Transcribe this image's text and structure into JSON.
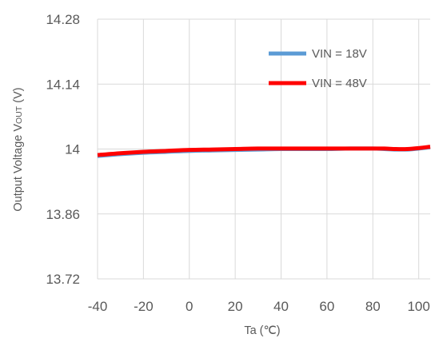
{
  "chart_data": {
    "type": "line",
    "title": "",
    "xlabel": "Ta (℃)",
    "ylabel": "Output Voltage Vout (V)",
    "ylabel_parts": {
      "main": "Output Voltage V",
      "subscript": "OUT",
      "unit": " (V)"
    },
    "xlim": [
      -40,
      105
    ],
    "ylim": [
      13.72,
      14.28
    ],
    "x_ticks": [
      "-40",
      "-20",
      "0",
      "20",
      "40",
      "60",
      "80",
      "100"
    ],
    "y_ticks": [
      "13.72",
      "13.86",
      "14",
      "14.14",
      "14.28"
    ],
    "grid": true,
    "legend_position": "top-right",
    "series": [
      {
        "name": "VIN = 18V",
        "color": "#5b9bd5",
        "x": [
          -40,
          -30,
          -20,
          -10,
          0,
          10,
          20,
          30,
          40,
          50,
          60,
          70,
          80,
          85,
          90,
          95,
          100,
          105
        ],
        "y": [
          13.985,
          13.989,
          13.992,
          13.994,
          13.996,
          13.997,
          13.998,
          13.999,
          14.0,
          14.0,
          14.0,
          14.001,
          14.001,
          14.0,
          13.999,
          13.999,
          14.001,
          14.004
        ]
      },
      {
        "name": "VIN = 48V",
        "color": "#ff0000",
        "x": [
          -40,
          -30,
          -20,
          -10,
          0,
          10,
          20,
          30,
          40,
          50,
          60,
          70,
          80,
          85,
          90,
          95,
          100,
          105
        ],
        "y": [
          13.987,
          13.991,
          13.994,
          13.996,
          13.998,
          13.999,
          14.0,
          14.001,
          14.001,
          14.001,
          14.001,
          14.001,
          14.001,
          14.001,
          14.0,
          14.0,
          14.002,
          14.005
        ]
      }
    ]
  }
}
